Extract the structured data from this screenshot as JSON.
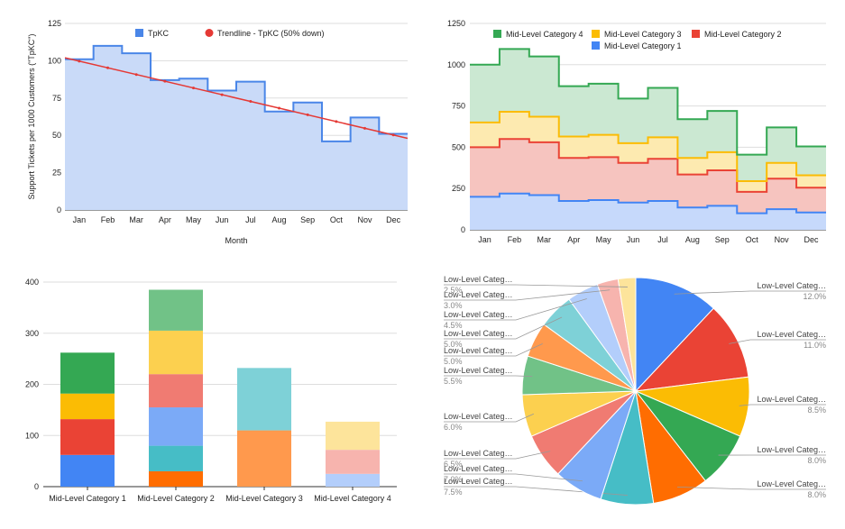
{
  "chart_data": [
    {
      "type": "area",
      "step": true,
      "xlabel": "Month",
      "ylabel": "Support Tickets per 1000 Customers (\"TpKC\")",
      "ylim": [
        0,
        125
      ],
      "yticks": [
        0,
        25,
        50,
        75,
        100,
        125
      ],
      "categories": [
        "Jan",
        "Feb",
        "Mar",
        "Apr",
        "May",
        "Jun",
        "Jul",
        "Aug",
        "Sep",
        "Oct",
        "Nov",
        "Dec"
      ],
      "series": [
        {
          "name": "TpKC",
          "color": "#4a86e8",
          "fill": "#c9daf8",
          "values": [
            101,
            110,
            105,
            87,
            88,
            80,
            86,
            66,
            72,
            46,
            62,
            51
          ]
        }
      ],
      "trendline": {
        "name": "Trendline - TpKC (50% down)",
        "color": "#e53935",
        "start": 102,
        "end": 48
      },
      "legend": "top"
    },
    {
      "type": "area",
      "step": true,
      "stacked": true,
      "ylim": [
        0,
        1250
      ],
      "yticks": [
        0,
        250,
        500,
        750,
        1000,
        1250
      ],
      "categories": [
        "Jan",
        "Feb",
        "Mar",
        "Apr",
        "May",
        "Jun",
        "Jul",
        "Aug",
        "Sep",
        "Oct",
        "Nov",
        "Dec"
      ],
      "series": [
        {
          "name": "Mid-Level Category 1",
          "color": "#4285f4",
          "fill": "#c6d9fb",
          "values": [
            200,
            220,
            210,
            175,
            180,
            165,
            175,
            135,
            145,
            100,
            125,
            105
          ]
        },
        {
          "name": "Mid-Level Category 2",
          "color": "#ea4335",
          "fill": "#f6c4bf",
          "values": [
            300,
            330,
            320,
            260,
            260,
            240,
            255,
            200,
            215,
            130,
            185,
            150
          ]
        },
        {
          "name": "Mid-Level Category 3",
          "color": "#fbbc04",
          "fill": "#fdeab0",
          "values": [
            150,
            165,
            155,
            130,
            135,
            120,
            130,
            100,
            110,
            65,
            95,
            75
          ]
        },
        {
          "name": "Mid-Level Category 4",
          "color": "#34a853",
          "fill": "#cbe8d2",
          "values": [
            350,
            380,
            365,
            305,
            310,
            270,
            300,
            235,
            250,
            160,
            215,
            175
          ]
        }
      ],
      "legend": "top"
    },
    {
      "type": "bar",
      "stacked": true,
      "ylim": [
        0,
        400
      ],
      "yticks": [
        0,
        100,
        200,
        300,
        400
      ],
      "categories": [
        "Mid-Level Category 1",
        "Mid-Level Category 2",
        "Mid-Level Category 3",
        "Mid-Level Category 4"
      ],
      "stacks": [
        [
          {
            "value": 62,
            "color": "#4285f4"
          },
          {
            "value": 70,
            "color": "#ea4335"
          },
          {
            "value": 50,
            "color": "#fbbc04"
          },
          {
            "value": 80,
            "color": "#34a853"
          }
        ],
        [
          {
            "value": 30,
            "color": "#ff6d01"
          },
          {
            "value": 50,
            "color": "#46bdc6"
          },
          {
            "value": 75,
            "color": "#7baaf7"
          },
          {
            "value": 65,
            "color": "#f07b72"
          },
          {
            "value": 85,
            "color": "#fcd04f"
          },
          {
            "value": 80,
            "color": "#71c287"
          }
        ],
        [
          {
            "value": 110,
            "color": "#ff994d"
          },
          {
            "value": 122,
            "color": "#7ed1d7"
          }
        ],
        [
          {
            "value": 25,
            "color": "#b3cefb"
          },
          {
            "value": 47,
            "color": "#f7b4ae"
          },
          {
            "value": 55,
            "color": "#fde49b"
          }
        ]
      ]
    },
    {
      "type": "pie",
      "slices": [
        {
          "label": "Low-Level Categ…",
          "pct": "12.0%",
          "value": 12.0,
          "color": "#4285f4"
        },
        {
          "label": "Low-Level Categ…",
          "pct": "11.0%",
          "value": 11.0,
          "color": "#ea4335"
        },
        {
          "label": "Low-Level Categ…",
          "pct": "8.5%",
          "value": 8.5,
          "color": "#fbbc04"
        },
        {
          "label": "Low-Level Categ…",
          "pct": "8.0%",
          "value": 8.0,
          "color": "#34a853"
        },
        {
          "label": "Low-Level Categ…",
          "pct": "8.0%",
          "value": 8.0,
          "color": "#ff6d01"
        },
        {
          "label": "Low-Level Categ…",
          "pct": "7.5%",
          "value": 7.5,
          "color": "#46bdc6"
        },
        {
          "label": "Low-Level Categ…",
          "pct": "7.0%",
          "value": 7.0,
          "color": "#7baaf7"
        },
        {
          "label": "Low-Level Categ…",
          "pct": "6.5%",
          "value": 6.5,
          "color": "#f07b72"
        },
        {
          "label": "Low-Level Categ…",
          "pct": "6.0%",
          "value": 6.0,
          "color": "#fcd04f"
        },
        {
          "label": "Low-Level Categ…",
          "pct": "5.5%",
          "value": 5.5,
          "color": "#71c287"
        },
        {
          "label": "Low-Level Categ…",
          "pct": "5.0%",
          "value": 5.0,
          "color": "#ff994d"
        },
        {
          "label": "Low-Level Categ…",
          "pct": "5.0%",
          "value": 5.0,
          "color": "#7ed1d7"
        },
        {
          "label": "Low-Level Categ…",
          "pct": "4.5%",
          "value": 4.5,
          "color": "#b3cefb"
        },
        {
          "label": "Low-Level Categ…",
          "pct": "3.0%",
          "value": 3.0,
          "color": "#f7b4ae"
        },
        {
          "label": "Low-Level Categ…",
          "pct": "2.5%",
          "value": 2.5,
          "color": "#fde49b"
        }
      ]
    }
  ]
}
